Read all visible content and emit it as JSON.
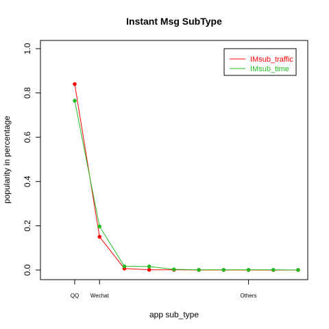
{
  "chart_data": {
    "type": "line",
    "title": "Instant Msg SubType",
    "xlabel": "app sub_type",
    "ylabel": "popularity in percentage",
    "ylim": [
      0,
      1.0
    ],
    "yticks": [
      "0.0",
      "0.2",
      "0.4",
      "0.6",
      "0.8",
      "1.0"
    ],
    "x": [
      1,
      2,
      3,
      4,
      5,
      6,
      7,
      8,
      9,
      10
    ],
    "xtick_labels": [
      {
        "x": 1,
        "label": "QQ"
      },
      {
        "x": 2,
        "label": "Wechat"
      },
      {
        "x": 8,
        "label": "Others"
      }
    ],
    "grid": false,
    "legend_position": "top-right",
    "series": [
      {
        "name": "IMsub_traffic",
        "color": "#ff0000",
        "values": [
          0.84,
          0.15,
          0.007,
          0.001,
          0.001,
          0.0005,
          0.0003,
          0.0002,
          0.0001,
          0.0001
        ]
      },
      {
        "name": "IMsub_time",
        "color": "#22bb22",
        "values": [
          0.765,
          0.197,
          0.017,
          0.016,
          0.003,
          0.001,
          0.001,
          0.001,
          0.001,
          0.0005
        ]
      }
    ]
  }
}
